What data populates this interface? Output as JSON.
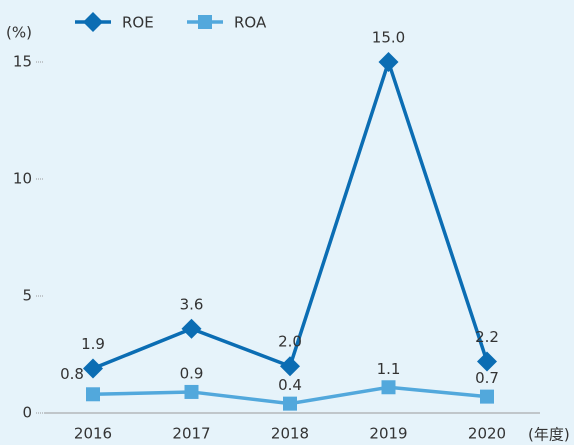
{
  "chart_data": {
    "type": "line",
    "y_axis_label": "(%)",
    "x_axis_label": "(年度)",
    "categories": [
      "2016",
      "2017",
      "2018",
      "2019",
      "2020"
    ],
    "series": [
      {
        "name": "ROE",
        "color": "#0b6db3",
        "marker": "diamond",
        "values": [
          1.9,
          3.6,
          2.0,
          15.0,
          2.2
        ],
        "value_labels": [
          "1.9",
          "3.6",
          "2.0",
          "15.0",
          "2.2"
        ]
      },
      {
        "name": "ROA",
        "color": "#52a8dc",
        "marker": "square",
        "values": [
          0.8,
          0.9,
          0.4,
          1.1,
          0.7
        ],
        "value_labels": [
          "0.8",
          "0.9",
          "0.4",
          "1.1",
          "0.7"
        ]
      }
    ],
    "ylim": [
      0,
      15
    ],
    "yticks": [
      0,
      5,
      10,
      15
    ]
  }
}
